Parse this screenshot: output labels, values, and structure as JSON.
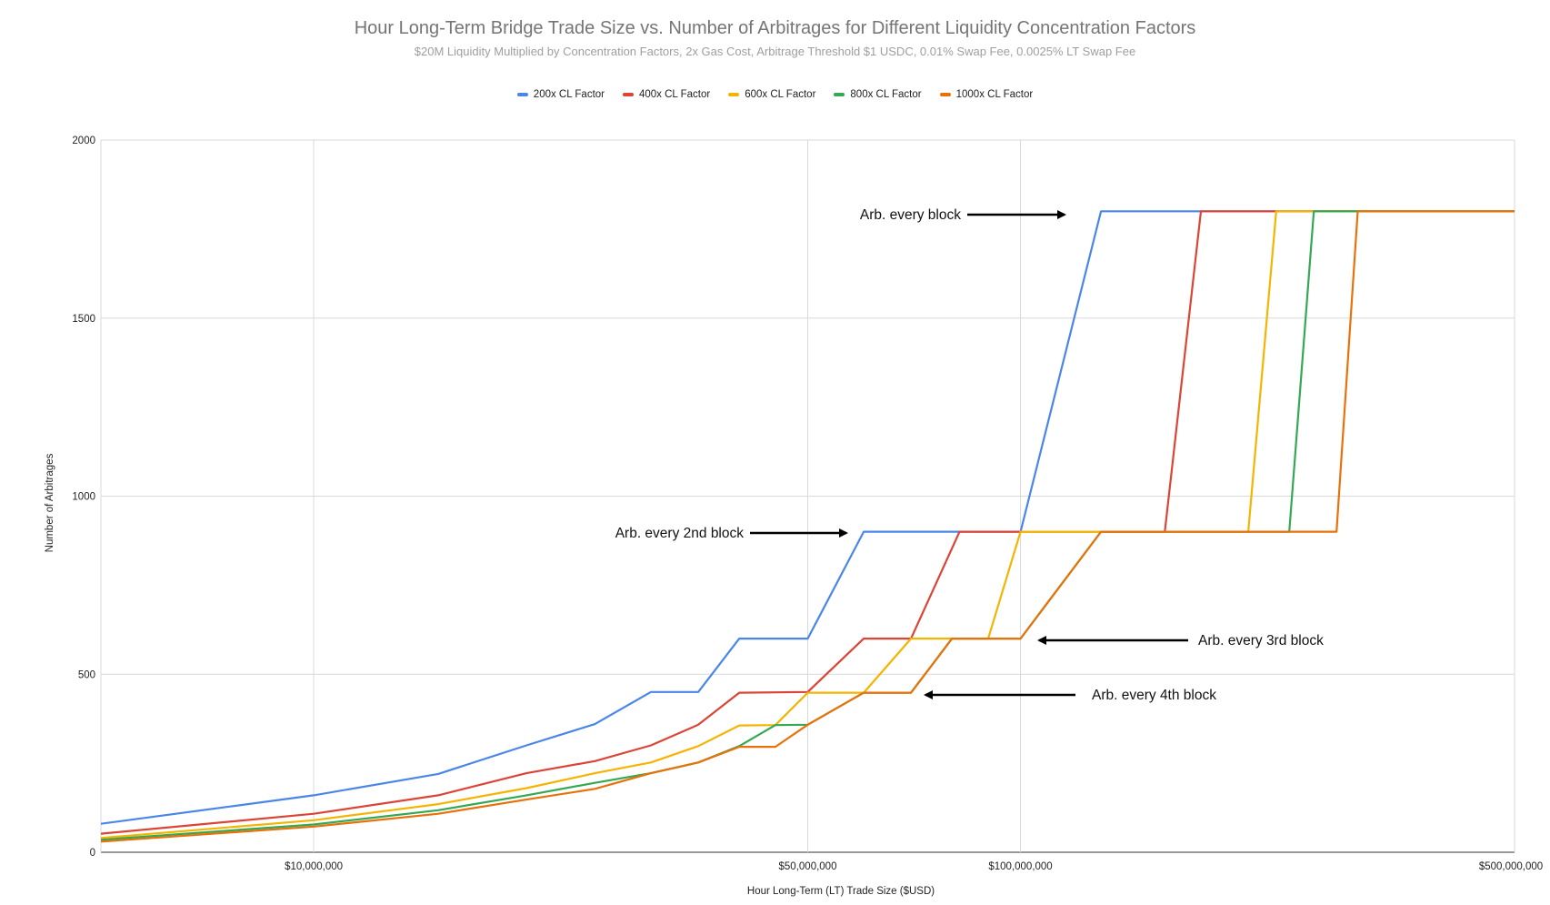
{
  "chart_data": {
    "type": "line",
    "title": "Hour Long-Term Bridge Trade Size vs. Number of Arbitrages for Different Liquidity Concentration Factors",
    "subtitle": "$20M Liquidity Multiplied by Concentration Factors, 2x Gas Cost, Arbitrage Threshold $1 USDC, 0.01% Swap Fee, 0.0025% LT Swap Fee",
    "xlabel": "Hour Long-Term (LT) Trade Size ($USD)",
    "ylabel": "Number of Arbitrages",
    "x_scale": "log",
    "xlim": [
      5000000,
      500000000
    ],
    "ylim": [
      0,
      2000
    ],
    "yticks": [
      "0",
      "500",
      "1000",
      "1500",
      "2000"
    ],
    "yticks_values": [
      0,
      500,
      1000,
      1500,
      2000
    ],
    "xticks": [
      "$10,000,000",
      "$50,000,000",
      "$100,000,000",
      "$500,000,000"
    ],
    "xticks_values": [
      10000000,
      50000000,
      100000000,
      500000000
    ],
    "grid": true,
    "legend_position": "top",
    "series": [
      {
        "name": "200x CL Factor",
        "color": "#4a86e8",
        "points": [
          [
            5000000,
            80
          ],
          [
            10000000,
            160
          ],
          [
            15000000,
            220
          ],
          [
            20000000,
            300
          ],
          [
            25000000,
            360
          ],
          [
            30000000,
            450
          ],
          [
            35000000,
            450
          ],
          [
            40000000,
            600
          ],
          [
            50000000,
            600
          ],
          [
            60000000,
            900
          ],
          [
            100000000,
            900
          ],
          [
            130000000,
            1800
          ],
          [
            500000000,
            1800
          ]
        ]
      },
      {
        "name": "400x CL Factor",
        "color": "#db4437",
        "points": [
          [
            5000000,
            52
          ],
          [
            10000000,
            108
          ],
          [
            15000000,
            160
          ],
          [
            20000000,
            222
          ],
          [
            25000000,
            256
          ],
          [
            30000000,
            300
          ],
          [
            35000000,
            358
          ],
          [
            40000000,
            448
          ],
          [
            50000000,
            450
          ],
          [
            60000000,
            600
          ],
          [
            70000000,
            600
          ],
          [
            82000000,
            900
          ],
          [
            160000000,
            900
          ],
          [
            180000000,
            1800
          ],
          [
            500000000,
            1800
          ]
        ]
      },
      {
        "name": "600x CL Factor",
        "color": "#f4b400",
        "points": [
          [
            5000000,
            40
          ],
          [
            10000000,
            90
          ],
          [
            15000000,
            135
          ],
          [
            20000000,
            180
          ],
          [
            25000000,
            222
          ],
          [
            30000000,
            252
          ],
          [
            35000000,
            298
          ],
          [
            40000000,
            356
          ],
          [
            45000000,
            357
          ],
          [
            50000000,
            448
          ],
          [
            60000000,
            448
          ],
          [
            70000000,
            600
          ],
          [
            90000000,
            600
          ],
          [
            100000000,
            900
          ],
          [
            210000000,
            900
          ],
          [
            230000000,
            1800
          ],
          [
            500000000,
            1800
          ]
        ]
      },
      {
        "name": "800x CL Factor",
        "color": "#34a853",
        "points": [
          [
            5000000,
            35
          ],
          [
            10000000,
            78
          ],
          [
            15000000,
            118
          ],
          [
            20000000,
            160
          ],
          [
            25000000,
            195
          ],
          [
            30000000,
            222
          ],
          [
            35000000,
            252
          ],
          [
            40000000,
            298
          ],
          [
            45000000,
            357
          ],
          [
            50000000,
            358
          ],
          [
            60000000,
            448
          ],
          [
            70000000,
            448
          ],
          [
            80000000,
            600
          ],
          [
            100000000,
            600
          ],
          [
            130000000,
            900
          ],
          [
            240000000,
            900
          ],
          [
            260000000,
            1800
          ],
          [
            500000000,
            1800
          ]
        ]
      },
      {
        "name": "1000x CL Factor",
        "color": "#e8710a",
        "points": [
          [
            5000000,
            30
          ],
          [
            10000000,
            72
          ],
          [
            15000000,
            108
          ],
          [
            20000000,
            148
          ],
          [
            25000000,
            178
          ],
          [
            30000000,
            222
          ],
          [
            35000000,
            252
          ],
          [
            40000000,
            296
          ],
          [
            45000000,
            296
          ],
          [
            50000000,
            358
          ],
          [
            60000000,
            448
          ],
          [
            70000000,
            448
          ],
          [
            80000000,
            600
          ],
          [
            100000000,
            600
          ],
          [
            130000000,
            900
          ],
          [
            280000000,
            900
          ],
          [
            300000000,
            1800
          ],
          [
            500000000,
            1800
          ]
        ]
      }
    ],
    "annotations": [
      {
        "text": "Arb. every block",
        "arrow": "right"
      },
      {
        "text": "Arb. every 2nd block",
        "arrow": "right"
      },
      {
        "text": "Arb. every 3rd block",
        "arrow": "left"
      },
      {
        "text": "Arb. every 4th block",
        "arrow": "left"
      }
    ]
  }
}
